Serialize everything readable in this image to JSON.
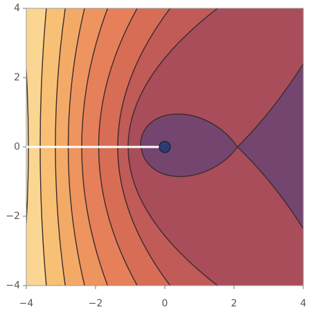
{
  "chart_data": {
    "type": "contour",
    "xlim": [
      -4,
      4
    ],
    "ylim": [
      -4,
      4
    ],
    "xticks": [
      {
        "value": -4,
        "label": "−4"
      },
      {
        "value": -2,
        "label": "−2"
      },
      0,
      2,
      4
    ],
    "yticks": [
      {
        "value": -4,
        "label": "−4"
      },
      {
        "value": -2,
        "label": "−2"
      },
      0,
      2,
      4
    ]
  }
}
